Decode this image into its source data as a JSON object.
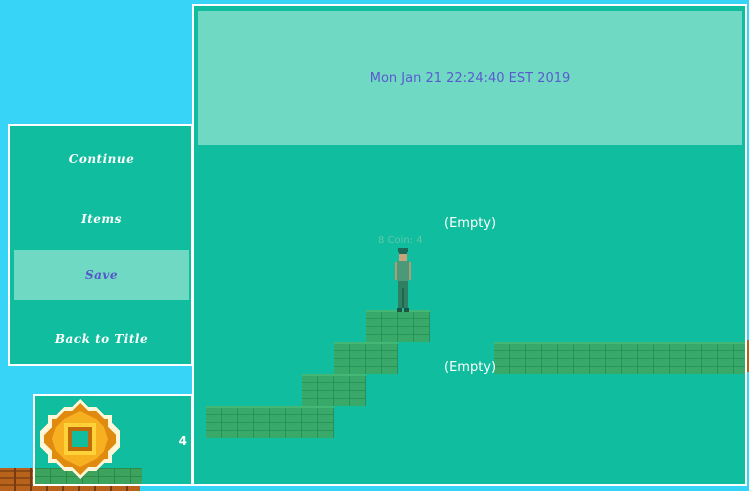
{
  "menu": {
    "items": [
      {
        "label": "Continue"
      },
      {
        "label": "Items"
      },
      {
        "label": "Save"
      },
      {
        "label": "Back to Title"
      }
    ],
    "selected_index": 2
  },
  "coins": {
    "count": "4",
    "icon": "coin-icon"
  },
  "save_slots": [
    {
      "label": "Mon Jan 21 22:24:40 EST 2019"
    },
    {
      "label": "(Empty)"
    },
    {
      "label": "(Empty)"
    }
  ],
  "slot_preview_hud": "8  Coin: 4",
  "colors": {
    "sky": "#37d4f8",
    "panel": "#10bd9e",
    "selected": "#6fd9c4",
    "selected_text": "#5557c9"
  }
}
